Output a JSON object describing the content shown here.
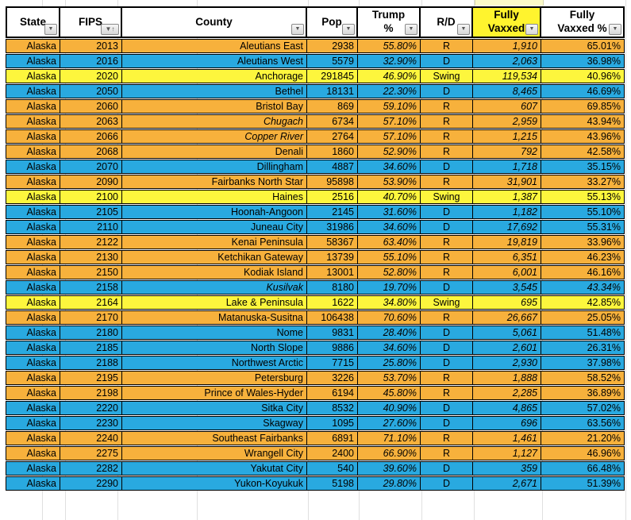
{
  "colors": {
    "republican_row": "#F7B13C",
    "democrat_row": "#29A9E0",
    "swing_row": "#FDF63D",
    "header_highlight": "#FFF42E"
  },
  "icons": {
    "filter_dropdown": "▼",
    "sort_ascending": "↑"
  },
  "table": {
    "columns": [
      {
        "key": "state",
        "label": "State",
        "highlight": false,
        "sorted": false
      },
      {
        "key": "fips",
        "label": "FIPS",
        "highlight": false,
        "sorted": true
      },
      {
        "key": "county",
        "label": "County",
        "highlight": false,
        "sorted": false
      },
      {
        "key": "pop",
        "label": "Pop",
        "highlight": false,
        "sorted": false
      },
      {
        "key": "trump_pct",
        "label": "Trump\n%",
        "highlight": false,
        "sorted": false
      },
      {
        "key": "rd",
        "label": "R/D",
        "highlight": false,
        "sorted": false
      },
      {
        "key": "fully_vaxxed",
        "label": "Fully\nVaxxed",
        "highlight": true,
        "sorted": false
      },
      {
        "key": "fully_vaxxed_pct",
        "label": "Fully\nVaxxed %",
        "highlight": false,
        "sorted": false
      }
    ],
    "rows": [
      {
        "state": "Alaska",
        "fips": "2013",
        "county": "Aleutians East",
        "pop": "2938",
        "trump_pct": "55.80%",
        "rd": "R",
        "fully_vaxxed": "1,910",
        "fully_vaxxed_pct": "65.01%",
        "color": "r",
        "county_italic": false,
        "vaxxed_pct_italic": false
      },
      {
        "state": "Alaska",
        "fips": "2016",
        "county": "Aleutians West",
        "pop": "5579",
        "trump_pct": "32.90%",
        "rd": "D",
        "fully_vaxxed": "2,063",
        "fully_vaxxed_pct": "36.98%",
        "color": "d",
        "county_italic": false,
        "vaxxed_pct_italic": false
      },
      {
        "state": "Alaska",
        "fips": "2020",
        "county": "Anchorage",
        "pop": "291845",
        "trump_pct": "46.90%",
        "rd": "Swing",
        "fully_vaxxed": "119,534",
        "fully_vaxxed_pct": "40.96%",
        "color": "swing",
        "county_italic": false,
        "vaxxed_pct_italic": false
      },
      {
        "state": "Alaska",
        "fips": "2050",
        "county": "Bethel",
        "pop": "18131",
        "trump_pct": "22.30%",
        "rd": "D",
        "fully_vaxxed": "8,465",
        "fully_vaxxed_pct": "46.69%",
        "color": "d",
        "county_italic": false,
        "vaxxed_pct_italic": false
      },
      {
        "state": "Alaska",
        "fips": "2060",
        "county": "Bristol Bay",
        "pop": "869",
        "trump_pct": "59.10%",
        "rd": "R",
        "fully_vaxxed": "607",
        "fully_vaxxed_pct": "69.85%",
        "color": "r",
        "county_italic": false,
        "vaxxed_pct_italic": false
      },
      {
        "state": "Alaska",
        "fips": "2063",
        "county": "Chugach",
        "pop": "6734",
        "trump_pct": "57.10%",
        "rd": "R",
        "fully_vaxxed": "2,959",
        "fully_vaxxed_pct": "43.94%",
        "color": "r",
        "county_italic": true,
        "vaxxed_pct_italic": false
      },
      {
        "state": "Alaska",
        "fips": "2066",
        "county": "Copper River",
        "pop": "2764",
        "trump_pct": "57.10%",
        "rd": "R",
        "fully_vaxxed": "1,215",
        "fully_vaxxed_pct": "43.96%",
        "color": "r",
        "county_italic": true,
        "vaxxed_pct_italic": false
      },
      {
        "state": "Alaska",
        "fips": "2068",
        "county": "Denali",
        "pop": "1860",
        "trump_pct": "52.90%",
        "rd": "R",
        "fully_vaxxed": "792",
        "fully_vaxxed_pct": "42.58%",
        "color": "r",
        "county_italic": false,
        "vaxxed_pct_italic": false
      },
      {
        "state": "Alaska",
        "fips": "2070",
        "county": "Dillingham",
        "pop": "4887",
        "trump_pct": "34.60%",
        "rd": "D",
        "fully_vaxxed": "1,718",
        "fully_vaxxed_pct": "35.15%",
        "color": "d",
        "county_italic": false,
        "vaxxed_pct_italic": false
      },
      {
        "state": "Alaska",
        "fips": "2090",
        "county": "Fairbanks North Star",
        "pop": "95898",
        "trump_pct": "53.90%",
        "rd": "R",
        "fully_vaxxed": "31,901",
        "fully_vaxxed_pct": "33.27%",
        "color": "r",
        "county_italic": false,
        "vaxxed_pct_italic": false
      },
      {
        "state": "Alaska",
        "fips": "2100",
        "county": "Haines",
        "pop": "2516",
        "trump_pct": "40.70%",
        "rd": "Swing",
        "fully_vaxxed": "1,387",
        "fully_vaxxed_pct": "55.13%",
        "color": "swing",
        "county_italic": false,
        "vaxxed_pct_italic": false
      },
      {
        "state": "Alaska",
        "fips": "2105",
        "county": "Hoonah-Angoon",
        "pop": "2145",
        "trump_pct": "31.60%",
        "rd": "D",
        "fully_vaxxed": "1,182",
        "fully_vaxxed_pct": "55.10%",
        "color": "d",
        "county_italic": false,
        "vaxxed_pct_italic": false
      },
      {
        "state": "Alaska",
        "fips": "2110",
        "county": "Juneau City",
        "pop": "31986",
        "trump_pct": "34.60%",
        "rd": "D",
        "fully_vaxxed": "17,692",
        "fully_vaxxed_pct": "55.31%",
        "color": "d",
        "county_italic": false,
        "vaxxed_pct_italic": false
      },
      {
        "state": "Alaska",
        "fips": "2122",
        "county": "Kenai Peninsula",
        "pop": "58367",
        "trump_pct": "63.40%",
        "rd": "R",
        "fully_vaxxed": "19,819",
        "fully_vaxxed_pct": "33.96%",
        "color": "r",
        "county_italic": false,
        "vaxxed_pct_italic": false
      },
      {
        "state": "Alaska",
        "fips": "2130",
        "county": "Ketchikan Gateway",
        "pop": "13739",
        "trump_pct": "55.10%",
        "rd": "R",
        "fully_vaxxed": "6,351",
        "fully_vaxxed_pct": "46.23%",
        "color": "r",
        "county_italic": false,
        "vaxxed_pct_italic": false
      },
      {
        "state": "Alaska",
        "fips": "2150",
        "county": "Kodiak Island",
        "pop": "13001",
        "trump_pct": "52.80%",
        "rd": "R",
        "fully_vaxxed": "6,001",
        "fully_vaxxed_pct": "46.16%",
        "color": "r",
        "county_italic": false,
        "vaxxed_pct_italic": false
      },
      {
        "state": "Alaska",
        "fips": "2158",
        "county": "Kusilvak",
        "pop": "8180",
        "trump_pct": "19.70%",
        "rd": "D",
        "fully_vaxxed": "3,545",
        "fully_vaxxed_pct": "43.34%",
        "color": "d",
        "county_italic": true,
        "vaxxed_pct_italic": true
      },
      {
        "state": "Alaska",
        "fips": "2164",
        "county": "Lake & Peninsula",
        "pop": "1622",
        "trump_pct": "34.80%",
        "rd": "Swing",
        "fully_vaxxed": "695",
        "fully_vaxxed_pct": "42.85%",
        "color": "swing",
        "county_italic": false,
        "vaxxed_pct_italic": false
      },
      {
        "state": "Alaska",
        "fips": "2170",
        "county": "Matanuska-Susitna",
        "pop": "106438",
        "trump_pct": "70.60%",
        "rd": "R",
        "fully_vaxxed": "26,667",
        "fully_vaxxed_pct": "25.05%",
        "color": "r",
        "county_italic": false,
        "vaxxed_pct_italic": false
      },
      {
        "state": "Alaska",
        "fips": "2180",
        "county": "Nome",
        "pop": "9831",
        "trump_pct": "28.40%",
        "rd": "D",
        "fully_vaxxed": "5,061",
        "fully_vaxxed_pct": "51.48%",
        "color": "d",
        "county_italic": false,
        "vaxxed_pct_italic": false
      },
      {
        "state": "Alaska",
        "fips": "2185",
        "county": "North Slope",
        "pop": "9886",
        "trump_pct": "34.60%",
        "rd": "D",
        "fully_vaxxed": "2,601",
        "fully_vaxxed_pct": "26.31%",
        "color": "d",
        "county_italic": false,
        "vaxxed_pct_italic": false
      },
      {
        "state": "Alaska",
        "fips": "2188",
        "county": "Northwest Arctic",
        "pop": "7715",
        "trump_pct": "25.80%",
        "rd": "D",
        "fully_vaxxed": "2,930",
        "fully_vaxxed_pct": "37.98%",
        "color": "d",
        "county_italic": false,
        "vaxxed_pct_italic": false
      },
      {
        "state": "Alaska",
        "fips": "2195",
        "county": "Petersburg",
        "pop": "3226",
        "trump_pct": "53.70%",
        "rd": "R",
        "fully_vaxxed": "1,888",
        "fully_vaxxed_pct": "58.52%",
        "color": "r",
        "county_italic": false,
        "vaxxed_pct_italic": false
      },
      {
        "state": "Alaska",
        "fips": "2198",
        "county": "Prince of Wales-Hyder",
        "pop": "6194",
        "trump_pct": "45.80%",
        "rd": "R",
        "fully_vaxxed": "2,285",
        "fully_vaxxed_pct": "36.89%",
        "color": "r",
        "county_italic": false,
        "vaxxed_pct_italic": false
      },
      {
        "state": "Alaska",
        "fips": "2220",
        "county": "Sitka City",
        "pop": "8532",
        "trump_pct": "40.90%",
        "rd": "D",
        "fully_vaxxed": "4,865",
        "fully_vaxxed_pct": "57.02%",
        "color": "d",
        "county_italic": false,
        "vaxxed_pct_italic": false
      },
      {
        "state": "Alaska",
        "fips": "2230",
        "county": "Skagway",
        "pop": "1095",
        "trump_pct": "27.60%",
        "rd": "D",
        "fully_vaxxed": "696",
        "fully_vaxxed_pct": "63.56%",
        "color": "d",
        "county_italic": false,
        "vaxxed_pct_italic": false
      },
      {
        "state": "Alaska",
        "fips": "2240",
        "county": "Southeast Fairbanks",
        "pop": "6891",
        "trump_pct": "71.10%",
        "rd": "R",
        "fully_vaxxed": "1,461",
        "fully_vaxxed_pct": "21.20%",
        "color": "r",
        "county_italic": false,
        "vaxxed_pct_italic": false
      },
      {
        "state": "Alaska",
        "fips": "2275",
        "county": "Wrangell City",
        "pop": "2400",
        "trump_pct": "66.90%",
        "rd": "R",
        "fully_vaxxed": "1,127",
        "fully_vaxxed_pct": "46.96%",
        "color": "r",
        "county_italic": false,
        "vaxxed_pct_italic": false
      },
      {
        "state": "Alaska",
        "fips": "2282",
        "county": "Yakutat City",
        "pop": "540",
        "trump_pct": "39.60%",
        "rd": "D",
        "fully_vaxxed": "359",
        "fully_vaxxed_pct": "66.48%",
        "color": "d",
        "county_italic": false,
        "vaxxed_pct_italic": false
      },
      {
        "state": "Alaska",
        "fips": "2290",
        "county": "Yukon-Koyukuk",
        "pop": "5198",
        "trump_pct": "29.80%",
        "rd": "D",
        "fully_vaxxed": "2,671",
        "fully_vaxxed_pct": "51.39%",
        "color": "d",
        "county_italic": false,
        "vaxxed_pct_italic": false
      }
    ]
  }
}
